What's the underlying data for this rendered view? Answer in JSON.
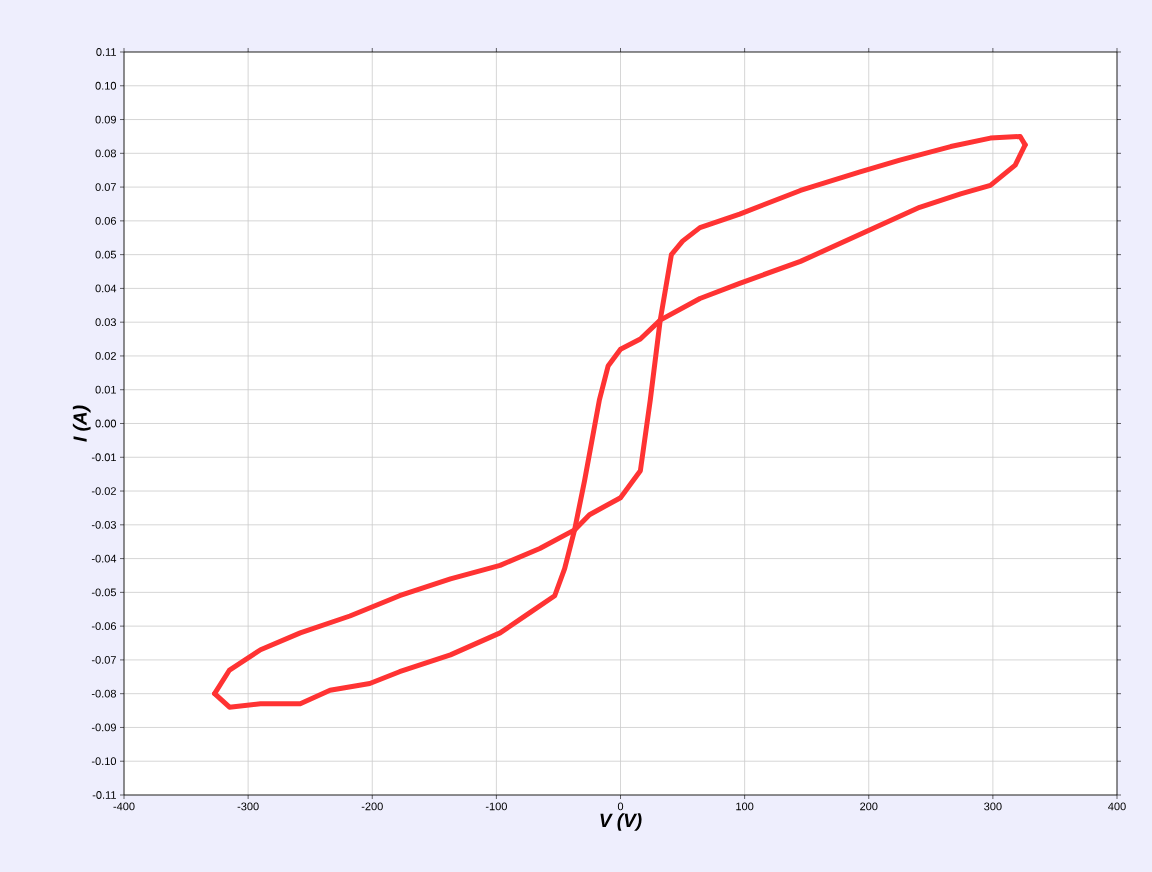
{
  "chart_data": {
    "type": "line",
    "xlabel": "V (V)",
    "ylabel": "I (A)",
    "series": [
      {
        "color": "#ff3333",
        "x": [
          326,
          322,
          298,
          266,
          225,
          193,
          145,
          96,
          64,
          50,
          41,
          32,
          24,
          16,
          4,
          0,
          -25,
          -37,
          -65,
          -97,
          -137,
          -178,
          -218,
          -258,
          -290,
          -315,
          -327
        ],
        "values": [
          0.0825,
          0.085,
          0.0845,
          0.082,
          0.078,
          0.0745,
          0.069,
          0.062,
          0.058,
          0.054,
          0.05,
          0.0306,
          0.007,
          -0.014,
          -0.02,
          -0.022,
          -0.027,
          -0.0315,
          -0.037,
          -0.042,
          -0.046,
          -0.051,
          -0.057,
          -0.062,
          -0.067,
          -0.073,
          -0.08
        ]
      },
      {
        "color": "#ff3333",
        "x": [
          -327,
          -315,
          -290,
          -258,
          -234,
          -202,
          -178,
          -137,
          -97,
          -73,
          -53,
          -45,
          -37,
          -29,
          -17,
          -10,
          0,
          16,
          32,
          64,
          96,
          145,
          193,
          241,
          274,
          298,
          318,
          326
        ],
        "values": [
          -0.08,
          -0.084,
          -0.083,
          -0.083,
          -0.079,
          -0.077,
          -0.0735,
          -0.0685,
          -0.062,
          -0.056,
          -0.051,
          -0.043,
          -0.0315,
          -0.017,
          0.007,
          0.017,
          0.022,
          0.025,
          0.0306,
          0.037,
          0.0415,
          0.048,
          0.056,
          0.064,
          0.068,
          0.0705,
          0.0765,
          0.0825
        ]
      }
    ],
    "line_style": "solid",
    "marker": "none",
    "grid": true,
    "xlim": [
      -400,
      400
    ],
    "xticks": [
      -400,
      -300,
      -200,
      -100,
      0,
      100,
      200,
      300,
      400
    ],
    "ylim": [
      -0.11,
      0.11
    ],
    "yticks": [
      {
        "value": -0.11,
        "label": "-0.11"
      },
      {
        "value": -0.1,
        "label": "-0.10"
      },
      {
        "value": -0.09,
        "label": "-0.09"
      },
      {
        "value": -0.08,
        "label": "-0.08"
      },
      {
        "value": -0.07,
        "label": "-0.07"
      },
      {
        "value": -0.06,
        "label": "-0.06"
      },
      {
        "value": -0.05,
        "label": "-0.05"
      },
      {
        "value": -0.04,
        "label": "-0.04"
      },
      {
        "value": -0.03,
        "label": "-0.03"
      },
      {
        "value": -0.02,
        "label": "-0.02"
      },
      {
        "value": -0.01,
        "label": "-0.01"
      },
      {
        "value": 0,
        "label": "0.00"
      },
      {
        "value": 0.01,
        "label": "0.01"
      },
      {
        "value": 0.02,
        "label": "0.02"
      },
      {
        "value": 0.03,
        "label": "0.03"
      },
      {
        "value": 0.04,
        "label": "0.04"
      },
      {
        "value": 0.05,
        "label": "0.05"
      },
      {
        "value": 0.06,
        "label": "0.06"
      },
      {
        "value": 0.07,
        "label": "0.07"
      },
      {
        "value": 0.08,
        "label": "0.08"
      },
      {
        "value": 0.09,
        "label": "0.09"
      },
      {
        "value": 0.1,
        "label": "0.10"
      },
      {
        "value": 0.11,
        "label": "0.11"
      }
    ]
  }
}
